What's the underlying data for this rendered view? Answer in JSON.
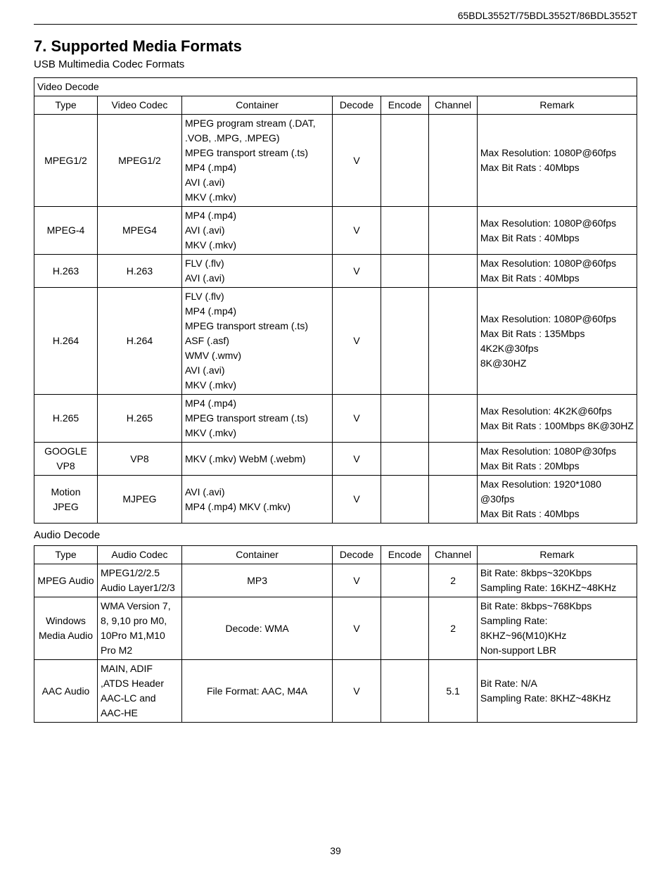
{
  "doc": {
    "header_right": "65BDL3552T/75BDL3552T/86BDL3552T",
    "section_title": "7.    Supported Media Formats",
    "subtitle": "USB Multimedia Codec Formats",
    "page_number": "39",
    "audio_sub": "Audio Decode"
  },
  "video_table": {
    "caption": "Video Decode",
    "headers": [
      "Type",
      "Video Codec",
      "Container",
      "Decode",
      "Encode",
      "Channel",
      "Remark"
    ],
    "rows": [
      {
        "type": "MPEG1/2",
        "codec": "MPEG1/2",
        "container": "MPEG program stream (.DAT, .VOB, .MPG, .MPEG)\nMPEG transport stream (.ts)\nMP4 (.mp4)\nAVI (.avi)\nMKV (.mkv)",
        "decode": "V",
        "encode": "",
        "channel": "",
        "remark": "Max Resolution: 1080P@60fps\nMax Bit Rats : 40Mbps"
      },
      {
        "type": "MPEG-4",
        "codec": "MPEG4",
        "container": "MP4 (.mp4)\nAVI (.avi)\nMKV (.mkv)",
        "decode": "V",
        "encode": "",
        "channel": "",
        "remark": "Max Resolution: 1080P@60fps\nMax Bit Rats : 40Mbps"
      },
      {
        "type": "H.263",
        "codec": "H.263",
        "container": "FLV (.flv)\nAVI (.avi)",
        "decode": "V",
        "encode": "",
        "channel": "",
        "remark": "Max Resolution: 1080P@60fps\nMax Bit Rats : 40Mbps"
      },
      {
        "type": "H.264",
        "codec": "H.264",
        "container": "FLV (.flv)\nMP4 (.mp4)\nMPEG transport stream (.ts)\nASF (.asf)\nWMV (.wmv)\nAVI (.avi)\nMKV (.mkv)",
        "decode": "V",
        "encode": "",
        "channel": "",
        "remark": "Max Resolution: 1080P@60fps\nMax Bit Rats : 135Mbps\n4K2K@30fps\n8K@30HZ"
      },
      {
        "type": "H.265",
        "codec": "H.265",
        "container": "MP4 (.mp4)\nMPEG transport stream (.ts)\nMKV (.mkv)",
        "decode": "V",
        "encode": "",
        "channel": "",
        "remark": "Max Resolution: 4K2K@60fps\nMax Bit Rats : 100Mbps 8K@30HZ"
      },
      {
        "type": "GOOGLE VP8",
        "codec": "VP8",
        "container": "MKV (.mkv) WebM (.webm)",
        "decode": "V",
        "encode": "",
        "channel": "",
        "remark": "Max Resolution: 1080P@30fps\nMax Bit Rats : 20Mbps"
      },
      {
        "type": "Motion JPEG",
        "codec": "MJPEG",
        "container": "AVI (.avi)\nMP4 (.mp4) MKV (.mkv)",
        "decode": "V",
        "encode": "",
        "channel": "",
        "remark": "Max Resolution: 1920*1080 @30fps\nMax Bit Rats : 40Mbps"
      }
    ]
  },
  "audio_table": {
    "headers": [
      "Type",
      "Audio Codec",
      "Container",
      "Decode",
      "Encode",
      "Channel",
      "Remark"
    ],
    "rows": [
      {
        "type": "MPEG Audio",
        "codec": "MPEG1/2/2.5 Audio Layer1/2/3",
        "container": "MP3",
        "container_align": "center",
        "decode": "V",
        "encode": "",
        "channel": "2",
        "remark": "Bit Rate: 8kbps~320Kbps\nSampling Rate:  16KHZ~48KHz"
      },
      {
        "type": "Windows Media Audio",
        "codec": "WMA Version 7, 8, 9,10 pro M0, 10Pro M1,M10 Pro M2",
        "container": "Decode: WMA",
        "container_align": "center",
        "decode": "V",
        "encode": "",
        "channel": "2",
        "remark": "Bit Rate: 8kbps~768Kbps\nSampling Rate:  8KHZ~96(M10)KHz\nNon-support LBR"
      },
      {
        "type": "AAC Audio",
        "codec": "MAIN, ADIF ,ATDS Header AAC-LC and AAC-HE",
        "container": "File Format: AAC, M4A",
        "container_align": "center",
        "decode": "V",
        "encode": "",
        "channel": "5.1",
        "remark": "Bit Rate: N/A\nSampling Rate:  8KHZ~48KHz"
      }
    ]
  }
}
